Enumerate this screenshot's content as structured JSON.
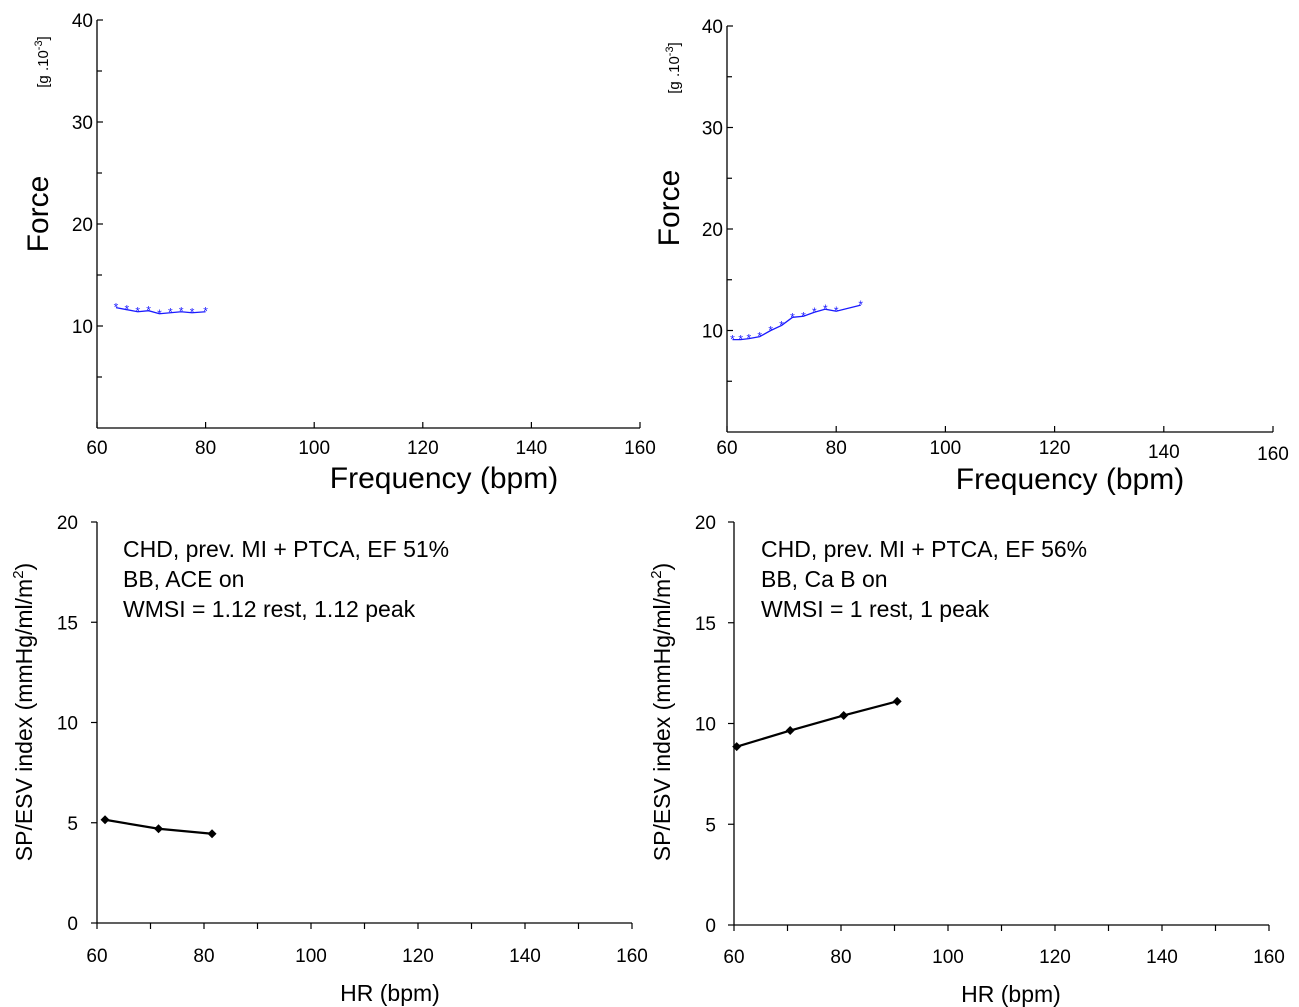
{
  "chart_data": [
    {
      "id": "top-left",
      "type": "line",
      "xlabel": "Frequency (bpm)",
      "ylabel": "Force",
      "yunit_base": "[g .10",
      "yunit_exp": "-3",
      "yunit_close": "]",
      "xlim": [
        60,
        160
      ],
      "ylim": [
        0,
        40
      ],
      "xticks": [
        60,
        80,
        100,
        120,
        140,
        160
      ],
      "yticks": [
        10,
        20,
        30,
        40
      ],
      "yminor": [
        5,
        15,
        25,
        35
      ],
      "annotations": [],
      "series": [
        {
          "color": "#1a1aff",
          "marker": "star",
          "x": [
            63.5,
            65.5,
            67.5,
            69.5,
            71.5,
            73.5,
            75.5,
            77.5,
            80
          ],
          "y": [
            11.8,
            11.6,
            11.4,
            11.5,
            11.2,
            11.3,
            11.4,
            11.3,
            11.4
          ]
        }
      ]
    },
    {
      "id": "top-right",
      "type": "line",
      "xlabel": "Frequency (bpm)",
      "ylabel": "Force",
      "yunit_base": "[g .10",
      "yunit_exp": "-3",
      "yunit_close": "]",
      "xlim": [
        60,
        160
      ],
      "ylim": [
        0,
        40
      ],
      "xticks": [
        60,
        80,
        100,
        120,
        140,
        160
      ],
      "yticks": [
        10,
        20,
        30,
        40
      ],
      "yminor": [
        5,
        15,
        25,
        35
      ],
      "annotations": [],
      "series": [
        {
          "color": "#1a1aff",
          "marker": "star",
          "x": [
            61,
            62.5,
            64,
            66,
            68,
            70,
            72,
            74,
            76,
            78,
            80,
            84.5
          ],
          "y": [
            9.1,
            9.1,
            9.2,
            9.4,
            10,
            10.5,
            11.3,
            11.4,
            11.8,
            12.1,
            11.9,
            12.5
          ]
        }
      ]
    },
    {
      "id": "bottom-left",
      "type": "line",
      "xlabel": "HR (bpm)",
      "ylabel": "SP/ESV index (mmHg/ml/m",
      "ylabel_sup": "2",
      "ylabel_close": ")",
      "xlim": [
        60,
        160
      ],
      "ylim": [
        0,
        20
      ],
      "xticks": [
        60,
        80,
        100,
        120,
        140,
        160
      ],
      "yticks": [
        0,
        5,
        10,
        15,
        20
      ],
      "annotations": [
        "CHD, prev. MI + PTCA, EF 51%",
        "BB, ACE on",
        "WMSI = 1.12 rest, 1.12 peak"
      ],
      "series": [
        {
          "color": "#000000",
          "marker": "diamond",
          "x": [
            61.5,
            71.5,
            81.5
          ],
          "y": [
            5.15,
            4.7,
            4.45
          ]
        }
      ]
    },
    {
      "id": "bottom-right",
      "type": "line",
      "xlabel": "HR (bpm)",
      "ylabel": "SP/ESV index (mmHg/ml/m",
      "ylabel_sup": "2",
      "ylabel_close": ")",
      "xlim": [
        60,
        160
      ],
      "ylim": [
        0,
        20
      ],
      "xticks": [
        60,
        80,
        100,
        120,
        140,
        160
      ],
      "yticks": [
        0,
        5,
        10,
        15,
        20
      ],
      "annotations": [
        "CHD, prev. MI + PTCA, EF 56%",
        "BB, Ca B on",
        "WMSI = 1 rest, 1 peak"
      ],
      "series": [
        {
          "color": "#000000",
          "marker": "diamond",
          "x": [
            60.5,
            70.5,
            80.5,
            90.5
          ],
          "y": [
            8.85,
            9.65,
            10.4,
            11.1
          ]
        }
      ]
    }
  ]
}
